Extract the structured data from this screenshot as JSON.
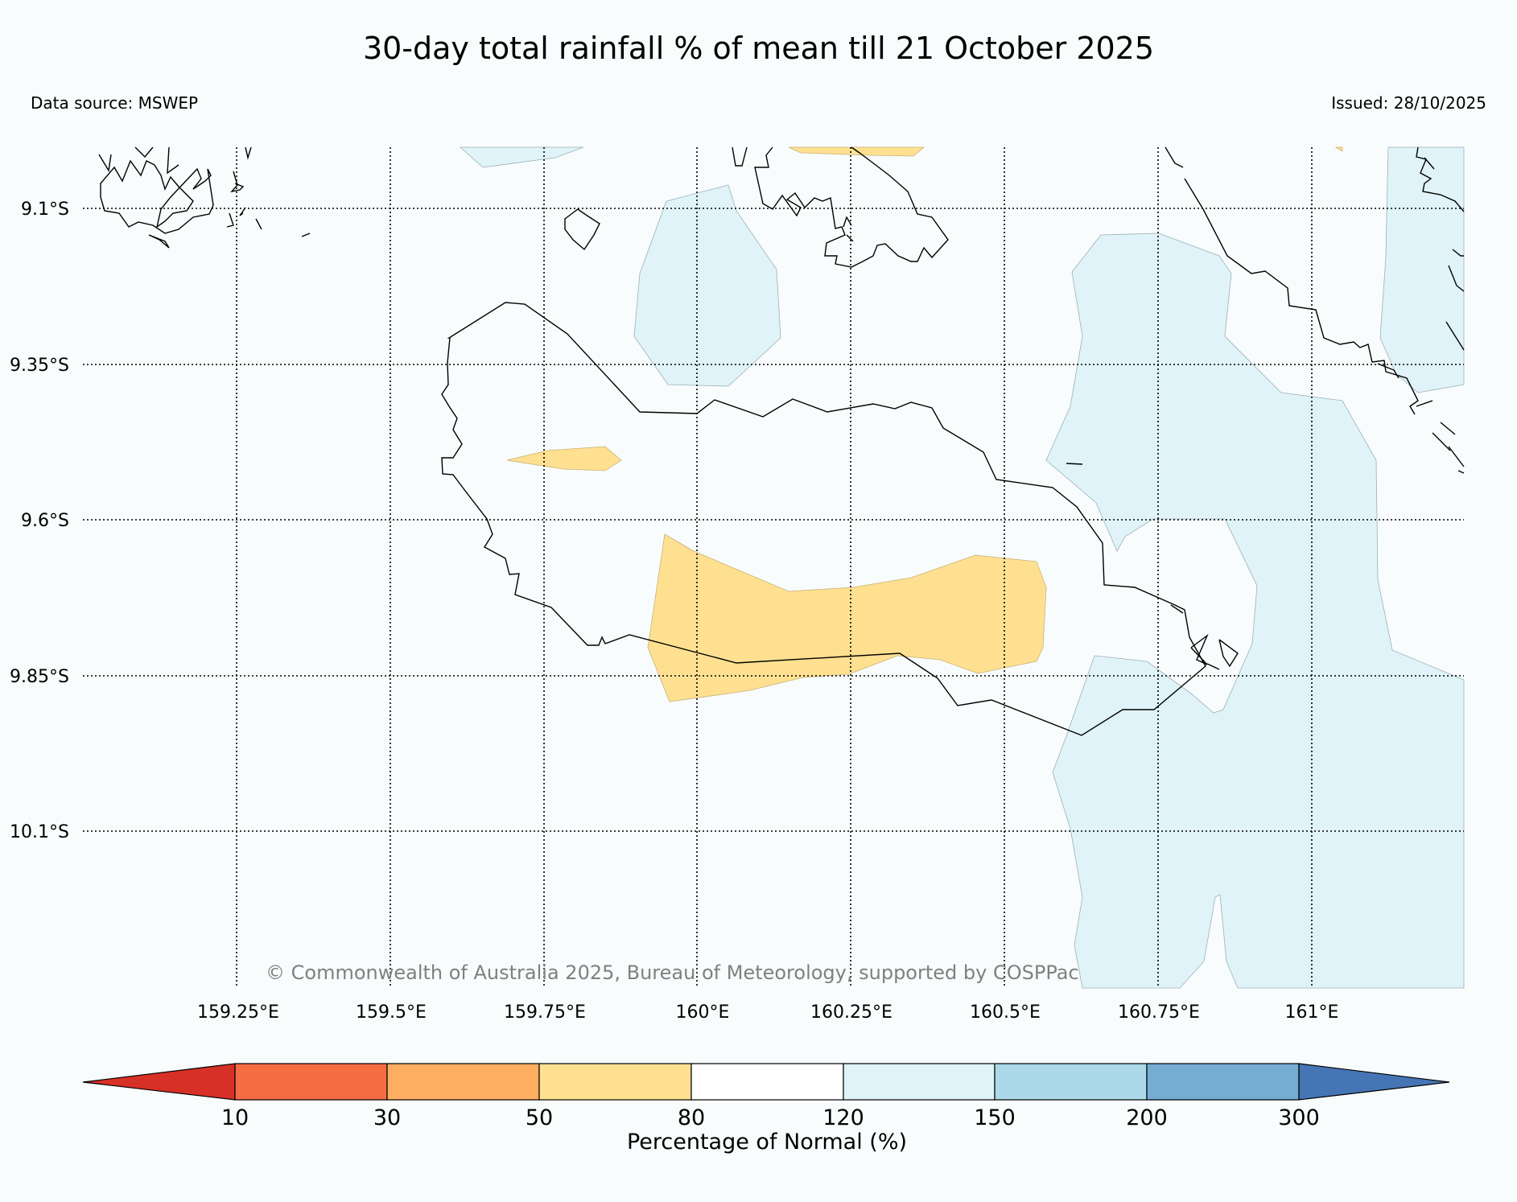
{
  "title": "30-day total rainfall % of mean till 21 October 2025",
  "data_source": "Data source: MSWEP",
  "issued": "Issued: 28/10/2025",
  "copyright": "© Commonwealth of Australia 2025, Bureau of Meteorology, supported by COSPPac",
  "lat_labels": [
    "9.1°S",
    "9.35°S",
    "9.6°S",
    "9.85°S",
    "10.1°S"
  ],
  "lon_labels": [
    "159.25°E",
    "159.5°E",
    "159.75°E",
    "160°E",
    "160.25°E",
    "160.5°E",
    "160.75°E",
    "161°E"
  ],
  "colorbar": {
    "label": "Percentage of Normal (%)",
    "ticks": [
      "10",
      "30",
      "50",
      "80",
      "120",
      "150",
      "200",
      "300"
    ],
    "colors": {
      "below_10": "#d73027",
      "10_30": "#f46d43",
      "30_50": "#fdae61",
      "50_80": "#fee090",
      "80_120": "#ffffff",
      "120_150": "#e0f3f8",
      "150_200": "#abd9e9",
      "200_300": "#74add1",
      "above_300": "#4575b4"
    }
  },
  "map_colors": {
    "background": "#f8fcfd",
    "dry_50_80": "#fee090",
    "wet_120_150": "#e0f3f8",
    "coastline": "#000000"
  }
}
